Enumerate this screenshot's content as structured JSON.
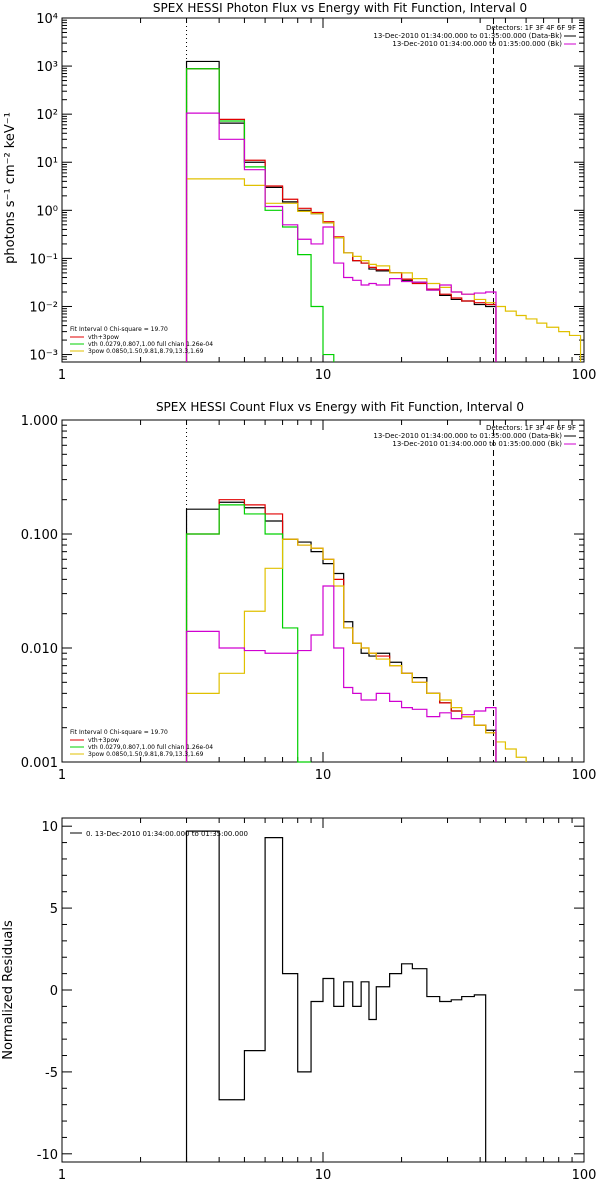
{
  "chart_data": [
    {
      "type": "line",
      "title": "SPEX HESSI Photon Flux vs Energy with Fit Function, Interval 0",
      "xlabel": "",
      "ylabel": "photons s⁻¹ cm⁻² keV⁻¹",
      "xscale": "log",
      "yscale": "log",
      "xlim": [
        1,
        100
      ],
      "ylim": [
        0.0007,
        10000
      ],
      "x_ticks": [
        "1",
        "10",
        "100"
      ],
      "y_ticks": [
        "10⁻³",
        "10⁻²",
        "10⁻¹",
        "10⁰",
        "10¹",
        "10²",
        "10³",
        "10⁴"
      ],
      "y_tick_values": [
        0.001,
        0.01,
        0.1,
        1,
        10,
        100,
        1000,
        10000
      ],
      "info_text": {
        "detectors": "Detectors: 1F 3F 4F 6F 9F",
        "data_time": "13-Dec-2010 01:34:00.000 to 01:35:00.000 (Data-Bk)",
        "bk_time": "13-Dec-2010 01:34:00.000 to 01:35:00.000 (Bk)"
      },
      "fit_text": {
        "header": "Fit Interval 0    Chi-square = 19.70",
        "model": "vth+3pow",
        "vth": "vth 0.0279,0.807,1.00  full chian 1.26e-04",
        "pow": "3pow 0.0850,1.50,9.81,8.79,13.3,1.69"
      },
      "vlines": [
        {
          "x": 3,
          "style": "dotted"
        },
        {
          "x": 45,
          "style": "dashed"
        }
      ],
      "edges": [
        3.0,
        4.0,
        5.0,
        6.0,
        7.0,
        8.0,
        9.0,
        10.0,
        11.0,
        12.0,
        13.0,
        14.0,
        15.0,
        16.0,
        18.0,
        20.0,
        22.0,
        25.0,
        28.0,
        31.0,
        34.0,
        38.0,
        42.0,
        46.0,
        50.0,
        55.0,
        60.0,
        66.0,
        72.0,
        80.0,
        88.0,
        97.0
      ],
      "series": [
        {
          "name": "data",
          "color": "#000000",
          "values": [
            1250,
            65,
            10,
            3.0,
            1.5,
            1.0,
            0.85,
            0.55,
            0.27,
            0.13,
            0.09,
            0.08,
            0.06,
            0.055,
            0.05,
            0.035,
            0.032,
            0.022,
            0.017,
            0.014,
            0.013,
            0.011,
            0.01
          ]
        },
        {
          "name": "model",
          "color": "#e00000",
          "values": [
            880,
            78,
            11,
            3.2,
            1.7,
            1.1,
            0.9,
            0.58,
            0.28,
            0.13,
            0.09,
            0.08,
            0.065,
            0.058,
            0.05,
            0.037,
            0.03,
            0.023,
            0.018,
            0.015,
            0.013,
            0.012,
            0.011
          ]
        },
        {
          "name": "vth",
          "color": "#00d000",
          "values": [
            880,
            72,
            8,
            1.0,
            0.45,
            0.12,
            0.01,
            0.001
          ]
        },
        {
          "name": "3pow",
          "color": "#e0c000",
          "values": [
            4.5,
            4.5,
            3.3,
            1.4,
            1.4,
            0.95,
            0.85,
            0.55,
            0.27,
            0.13,
            0.11,
            0.09,
            0.075,
            0.07,
            0.05,
            0.05,
            0.038,
            0.03,
            0.025,
            0.02,
            0.018,
            0.014,
            0.012,
            0.01,
            0.008,
            0.0065,
            0.0055,
            0.0045,
            0.0037,
            0.003,
            0.0025
          ]
        },
        {
          "name": "background",
          "color": "#d000d0",
          "values": [
            105,
            30,
            7.0,
            1.2,
            0.5,
            0.25,
            0.2,
            0.45,
            0.08,
            0.04,
            0.035,
            0.028,
            0.03,
            0.028,
            0.038,
            0.033,
            0.032,
            0.022,
            0.028,
            0.02,
            0.018,
            0.019,
            0.02
          ]
        }
      ],
      "grid": false
    },
    {
      "type": "line",
      "title": "SPEX HESSI Count Flux vs Energy with Fit Function, Interval 0",
      "xlabel": "",
      "ylabel": "",
      "xscale": "log",
      "yscale": "log",
      "xlim": [
        1,
        100
      ],
      "ylim": [
        0.001,
        1.0
      ],
      "x_ticks": [
        "1",
        "10",
        "100"
      ],
      "y_ticks": [
        "0.001",
        "0.010",
        "0.100",
        "1.000"
      ],
      "y_tick_values": [
        0.001,
        0.01,
        0.1,
        1.0
      ],
      "info_text": {
        "detectors": "Detectors: 1F 3F 4F 6F 9F",
        "data_time": "13-Dec-2010 01:34:00.000 to 01:35:00.000 (Data-Bk)",
        "bk_time": "13-Dec-2010 01:34:00.000 to 01:35:00.000 (Bk)"
      },
      "fit_text": {
        "header": "Fit Interval 0    Chi-square = 19.70",
        "model": "vth+3pow",
        "vth": "vth 0.0279,0.807,1.00  full chian 1.26e-04",
        "pow": "3pow 0.0850,1.50,9.81,8.79,13.3,1.69"
      },
      "vlines": [
        {
          "x": 3,
          "style": "dotted"
        },
        {
          "x": 45,
          "style": "dashed"
        }
      ],
      "edges": [
        3.0,
        4.0,
        5.0,
        6.0,
        7.0,
        8.0,
        9.0,
        10.0,
        11.0,
        12.0,
        13.0,
        14.0,
        15.0,
        16.0,
        18.0,
        20.0,
        22.0,
        25.0,
        28.0,
        31.0,
        34.0,
        38.0,
        42.0,
        46.0,
        50.0,
        55.0,
        60.0
      ],
      "series": [
        {
          "name": "data",
          "color": "#000000",
          "values": [
            0.165,
            0.19,
            0.17,
            0.13,
            0.09,
            0.085,
            0.07,
            0.055,
            0.045,
            0.017,
            0.011,
            0.009,
            0.0085,
            0.009,
            0.0075,
            0.006,
            0.0055,
            0.004,
            0.0033,
            0.0028,
            0.0025,
            0.0021,
            0.0019
          ]
        },
        {
          "name": "model",
          "color": "#e00000",
          "values": [
            0.1,
            0.2,
            0.18,
            0.15,
            0.09,
            0.08,
            0.075,
            0.06,
            0.04,
            0.015,
            0.011,
            0.01,
            0.009,
            0.0085,
            0.007,
            0.006,
            0.005,
            0.004,
            0.0033,
            0.0028,
            0.0025,
            0.0021,
            0.0018
          ]
        },
        {
          "name": "vth",
          "color": "#00d000",
          "values": [
            0.1,
            0.18,
            0.15,
            0.1,
            0.015,
            0.001
          ]
        },
        {
          "name": "3pow",
          "color": "#e0c000",
          "values": [
            0.004,
            0.006,
            0.021,
            0.05,
            0.09,
            0.08,
            0.075,
            0.06,
            0.035,
            0.015,
            0.011,
            0.01,
            0.009,
            0.008,
            0.007,
            0.006,
            0.005,
            0.004,
            0.0035,
            0.003,
            0.0025,
            0.0021,
            0.0018,
            0.0015,
            0.0013,
            0.0011
          ]
        },
        {
          "name": "background",
          "color": "#d000d0",
          "values": [
            0.014,
            0.01,
            0.0095,
            0.009,
            0.009,
            0.0095,
            0.013,
            0.035,
            0.01,
            0.0045,
            0.004,
            0.0035,
            0.0035,
            0.004,
            0.0034,
            0.003,
            0.0029,
            0.0025,
            0.0027,
            0.0024,
            0.0026,
            0.0028,
            0.003
          ]
        }
      ],
      "grid": false
    },
    {
      "type": "line",
      "title": "",
      "xlabel": "",
      "ylabel": "Normalized Residuals",
      "xscale": "log",
      "yscale": "linear",
      "xlim": [
        1,
        100
      ],
      "ylim": [
        -10.5,
        10.5
      ],
      "x_ticks": [
        "1",
        "10",
        "100"
      ],
      "y_ticks": [
        "-10",
        "-5",
        "0",
        "5",
        "10"
      ],
      "y_tick_values": [
        -10,
        -5,
        0,
        5,
        10
      ],
      "legend": "0. 13-Dec-2010 01:34:00.000 to 01:35:00.000",
      "edges": [
        3.0,
        4.0,
        5.0,
        6.0,
        7.0,
        8.0,
        9.0,
        10.0,
        11.0,
        12.0,
        13.0,
        14.0,
        15.0,
        16.0,
        18.0,
        20.0,
        22.0,
        25.0,
        28.0,
        31.0,
        34.0,
        38.0,
        42.0,
        46.0
      ],
      "series": [
        {
          "name": "residuals",
          "color": "#000000",
          "values": [
            9.7,
            -6.7,
            -3.7,
            9.3,
            1.0,
            -5.0,
            -0.7,
            0.7,
            -1.0,
            0.5,
            -1.0,
            0.5,
            -1.8,
            0.2,
            1.0,
            1.6,
            1.3,
            -0.4,
            -0.7,
            -0.6,
            -0.4,
            -0.3
          ]
        }
      ],
      "grid": false
    }
  ]
}
